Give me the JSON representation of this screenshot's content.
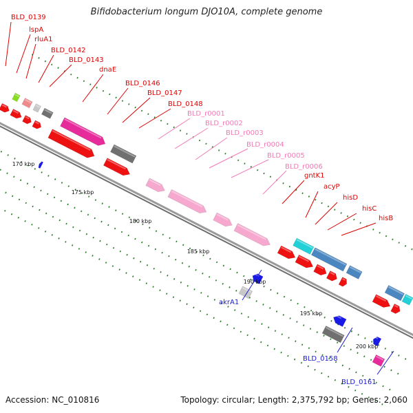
{
  "title": "Bifidobacterium longum DJO10A, complete genome",
  "footer": {
    "accession": "Accession: NC_010816",
    "summary": "Topology: circular; Length: 2,375,792 bp; Genes: 2,060"
  },
  "colors": {
    "backbone": "#8c8c8c",
    "tick": "#2a7a2a",
    "red": "#ee1111",
    "pink": "#f7a8cf",
    "magenta": "#e62b9b",
    "gray": "#707070",
    "lightgray": "#c8c8c8",
    "steelblue": "#4a86c0",
    "cyan": "#22d0d8",
    "blue": "#1a1ae6",
    "lime": "#88dd22",
    "salmon": "#f08a8a",
    "red_label": "#dd0000",
    "pink_label": "#f07ab5",
    "blue_label": "#1a1acc"
  },
  "genome_map": {
    "scale_labels": [
      "170 kbp",
      "175 kbp",
      "180 kbp",
      "185 kbp",
      "190 kbp",
      "195 kbp",
      "200 kbp"
    ],
    "labels_top": [
      {
        "text": "BLD_0139",
        "color": "red_label"
      },
      {
        "text": "lspA",
        "color": "red_label"
      },
      {
        "text": "rluA1",
        "color": "red_label"
      },
      {
        "text": "BLD_0142",
        "color": "red_label"
      },
      {
        "text": "BLD_0143",
        "color": "red_label"
      },
      {
        "text": "dnaE",
        "color": "red_label"
      },
      {
        "text": "BLD_0146",
        "color": "red_label"
      },
      {
        "text": "BLD_0147",
        "color": "red_label"
      },
      {
        "text": "BLD_0148",
        "color": "red_label"
      },
      {
        "text": "BLD_r0001",
        "color": "pink_label"
      },
      {
        "text": "BLD_r0002",
        "color": "pink_label"
      },
      {
        "text": "BLD_r0003",
        "color": "pink_label"
      },
      {
        "text": "BLD_r0004",
        "color": "pink_label"
      },
      {
        "text": "BLD_r0005",
        "color": "pink_label"
      },
      {
        "text": "BLD_r0006",
        "color": "pink_label"
      },
      {
        "text": "gntK1",
        "color": "red_label"
      },
      {
        "text": "acyP",
        "color": "red_label"
      },
      {
        "text": "hisD",
        "color": "red_label"
      },
      {
        "text": "hisC",
        "color": "red_label"
      },
      {
        "text": "hisB",
        "color": "red_label"
      }
    ],
    "labels_bottom": [
      {
        "text": "akrA1",
        "color": "blue_label"
      },
      {
        "text": "BLD_0158",
        "color": "blue_label"
      },
      {
        "text": "BLD_0161",
        "color": "blue_label"
      }
    ]
  }
}
